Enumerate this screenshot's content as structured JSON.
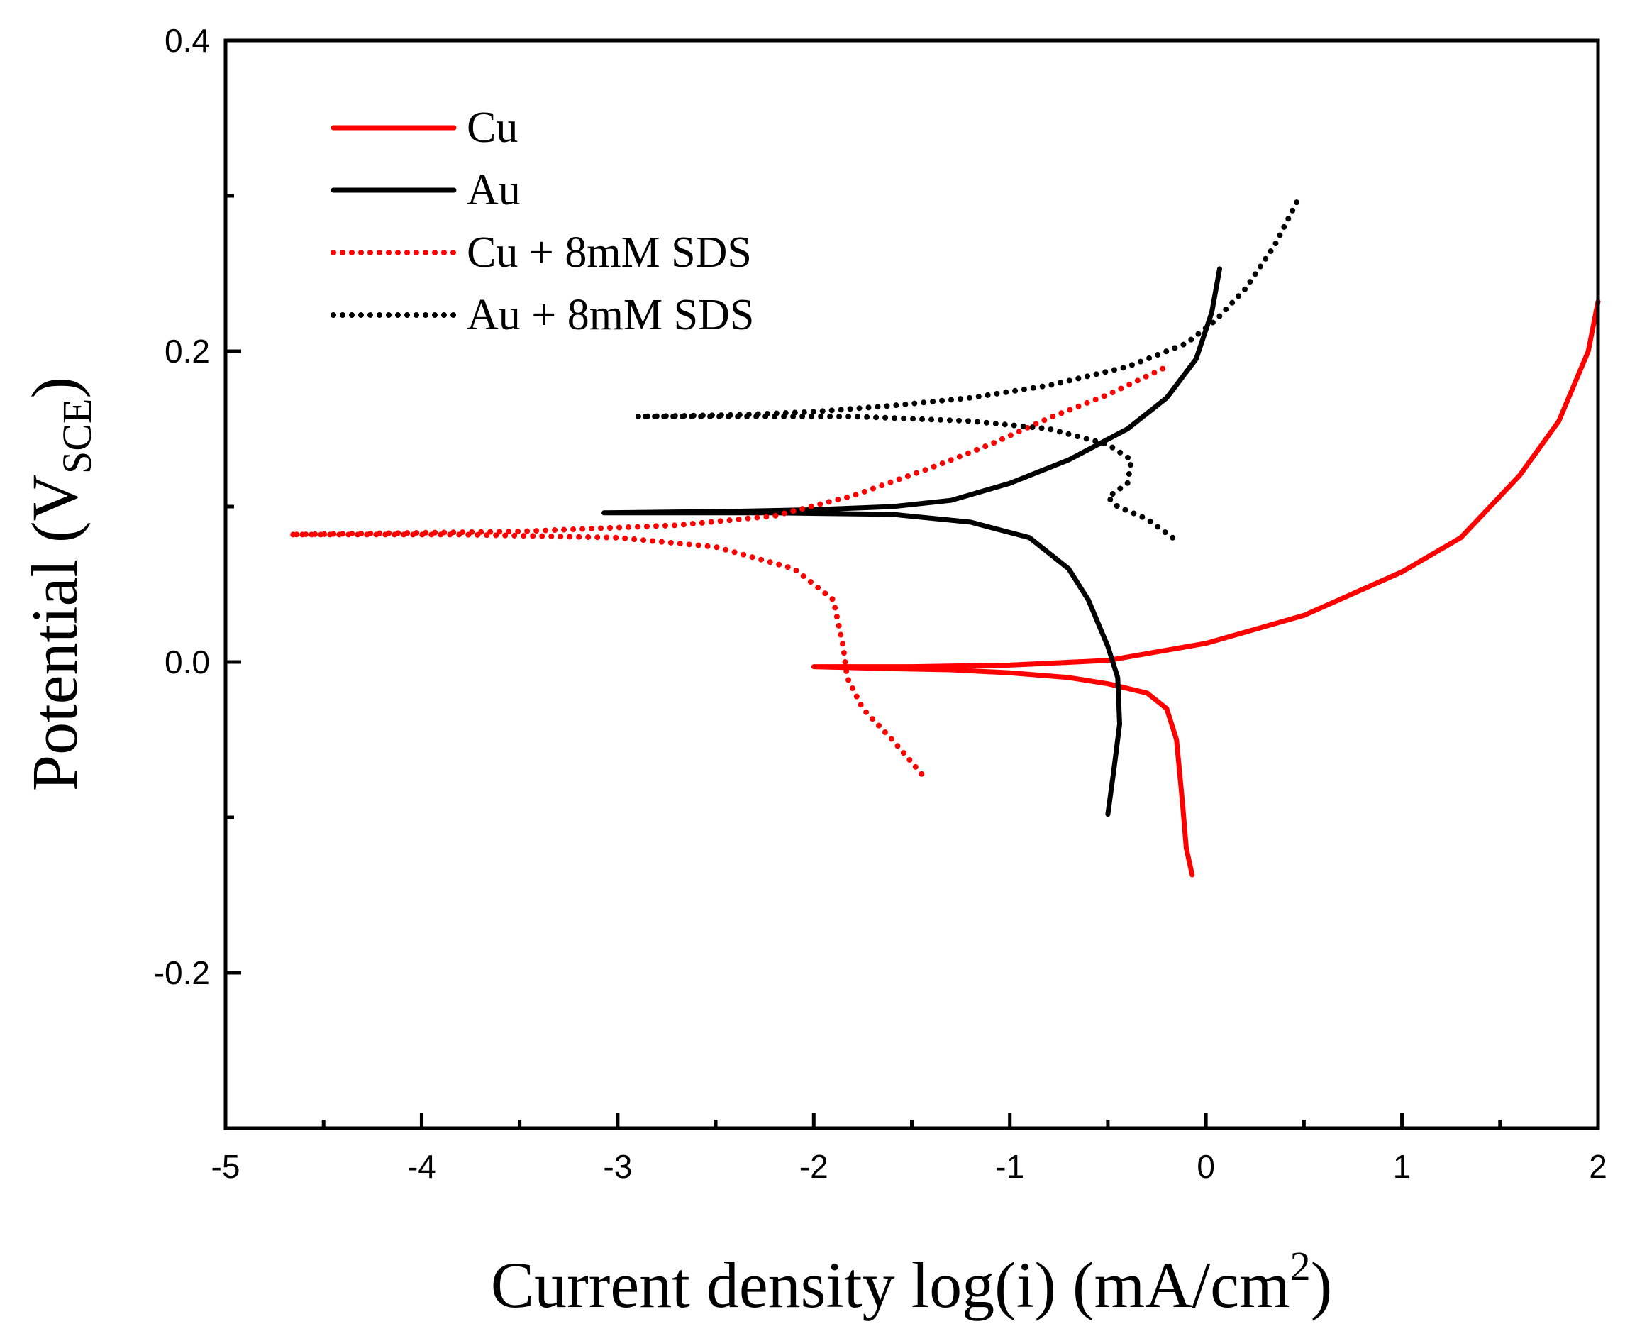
{
  "chart_data": {
    "type": "line",
    "title": "",
    "xlabel": {
      "main": "Current density log(i) (mA/cm",
      "sup": "2",
      "close": ")"
    },
    "ylabel": {
      "main": "Potential (V",
      "sub": "SCE",
      "close": ")"
    },
    "xlim": [
      -5,
      2
    ],
    "ylim": [
      -0.3,
      0.4
    ],
    "x_ticks": [
      -5,
      -4,
      -3,
      -2,
      -1,
      0,
      1,
      2
    ],
    "x_tick_labels": [
      "-5",
      "-4",
      "-3",
      "-2",
      "-1",
      "0",
      "1",
      "2"
    ],
    "y_ticks": [
      -0.2,
      0.0,
      0.2,
      0.4
    ],
    "y_tick_labels": [
      "-0.2",
      "0.0",
      "0.2",
      "0.4"
    ],
    "legend_position": "top-left",
    "series": [
      {
        "name": "Cu",
        "color": "#ff0000",
        "style": "solid",
        "points": [
          [
            -0.07,
            -0.137
          ],
          [
            -0.1,
            -0.12
          ],
          [
            -0.12,
            -0.09
          ],
          [
            -0.15,
            -0.05
          ],
          [
            -0.2,
            -0.03
          ],
          [
            -0.3,
            -0.02
          ],
          [
            -0.5,
            -0.014
          ],
          [
            -0.7,
            -0.01
          ],
          [
            -1.0,
            -0.007
          ],
          [
            -1.3,
            -0.005
          ],
          [
            -1.7,
            -0.004
          ],
          [
            -2.0,
            -0.003
          ],
          [
            -1.5,
            -0.003
          ],
          [
            -1.0,
            -0.002
          ],
          [
            -0.5,
            0.001
          ],
          [
            0.0,
            0.012
          ],
          [
            0.5,
            0.03
          ],
          [
            1.0,
            0.058
          ],
          [
            1.3,
            0.08
          ],
          [
            1.6,
            0.12
          ],
          [
            1.8,
            0.155
          ],
          [
            1.95,
            0.2
          ],
          [
            2.0,
            0.232
          ]
        ]
      },
      {
        "name": "Au",
        "color": "#000000",
        "style": "solid",
        "points": [
          [
            -0.5,
            -0.098
          ],
          [
            -0.47,
            -0.07
          ],
          [
            -0.44,
            -0.04
          ],
          [
            -0.45,
            -0.01
          ],
          [
            -0.5,
            0.01
          ],
          [
            -0.6,
            0.04
          ],
          [
            -0.7,
            0.06
          ],
          [
            -0.9,
            0.08
          ],
          [
            -1.2,
            0.09
          ],
          [
            -1.6,
            0.095
          ],
          [
            -2.2,
            0.096
          ],
          [
            -3.07,
            0.096
          ],
          [
            -2.4,
            0.097
          ],
          [
            -2.0,
            0.098
          ],
          [
            -1.6,
            0.1
          ],
          [
            -1.3,
            0.104
          ],
          [
            -1.0,
            0.115
          ],
          [
            -0.7,
            0.13
          ],
          [
            -0.4,
            0.15
          ],
          [
            -0.2,
            0.17
          ],
          [
            -0.05,
            0.195
          ],
          [
            0.03,
            0.225
          ],
          [
            0.07,
            0.253
          ]
        ]
      },
      {
        "name": "Cu + 8mM SDS",
        "color": "#ff0000",
        "style": "dotted",
        "points": [
          [
            -1.45,
            -0.072
          ],
          [
            -1.6,
            -0.05
          ],
          [
            -1.75,
            -0.03
          ],
          [
            -1.83,
            -0.01
          ],
          [
            -1.85,
            0.01
          ],
          [
            -1.9,
            0.04
          ],
          [
            -2.1,
            0.06
          ],
          [
            -2.5,
            0.074
          ],
          [
            -3.0,
            0.08
          ],
          [
            -3.8,
            0.082
          ],
          [
            -4.67,
            0.082
          ],
          [
            -3.5,
            0.084
          ],
          [
            -2.7,
            0.088
          ],
          [
            -2.2,
            0.094
          ],
          [
            -1.8,
            0.107
          ],
          [
            -1.4,
            0.125
          ],
          [
            -1.1,
            0.14
          ],
          [
            -0.8,
            0.157
          ],
          [
            -0.5,
            0.172
          ],
          [
            -0.2,
            0.19
          ]
        ]
      },
      {
        "name": "Au + 8mM SDS",
        "color": "#000000",
        "style": "dotted",
        "points": [
          [
            -0.17,
            0.08
          ],
          [
            -0.3,
            0.092
          ],
          [
            -0.45,
            0.1
          ],
          [
            -0.5,
            0.106
          ],
          [
            -0.4,
            0.115
          ],
          [
            -0.38,
            0.13
          ],
          [
            -0.5,
            0.14
          ],
          [
            -0.8,
            0.15
          ],
          [
            -1.2,
            0.155
          ],
          [
            -1.8,
            0.158
          ],
          [
            -2.2,
            0.158
          ],
          [
            -2.9,
            0.158
          ],
          [
            -2.4,
            0.159
          ],
          [
            -2.0,
            0.161
          ],
          [
            -1.6,
            0.165
          ],
          [
            -1.2,
            0.17
          ],
          [
            -0.8,
            0.178
          ],
          [
            -0.4,
            0.19
          ],
          [
            -0.1,
            0.205
          ],
          [
            0.05,
            0.22
          ],
          [
            0.2,
            0.24
          ],
          [
            0.35,
            0.268
          ],
          [
            0.48,
            0.3
          ]
        ]
      }
    ]
  }
}
